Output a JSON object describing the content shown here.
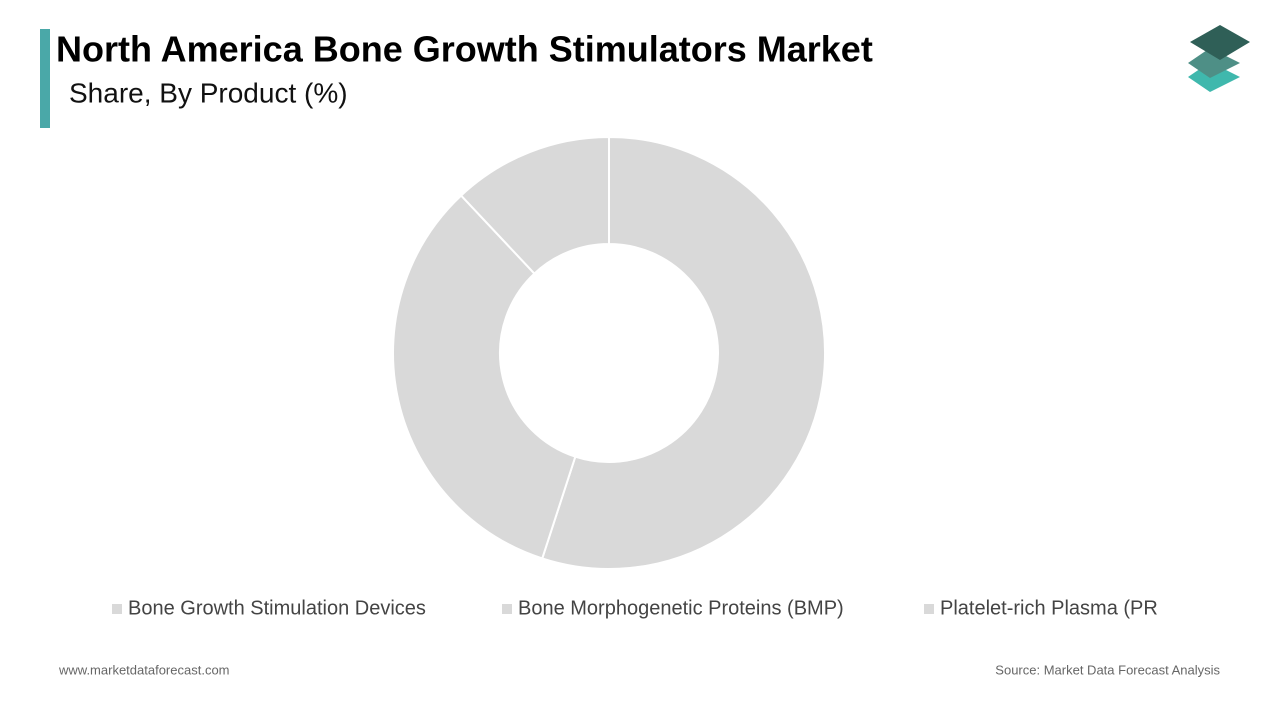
{
  "chart_data": {
    "type": "donut",
    "title": "North America Bone Growth Stimulators Market",
    "subtitle": "Share, By Product  (%)",
    "categories": [
      "Bone Growth Stimulation Devices",
      "Bone Morphogenetic Proteins (BMP)",
      "Platelet-rich Plasma (PR"
    ],
    "values": [
      55,
      33,
      12
    ],
    "colors": [
      "#d9d9d9",
      "#d9d9d9",
      "#d9d9d9"
    ],
    "legend": "bottom",
    "website": "www.marketdataforecast.com",
    "source": "Source: Market Data Forecast Analysis"
  }
}
